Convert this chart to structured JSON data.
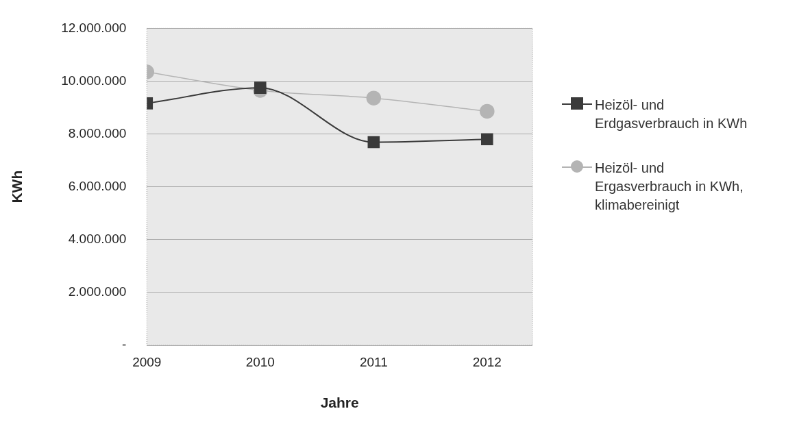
{
  "chart_data": {
    "type": "line",
    "xlabel": "Jahre",
    "ylabel": "KWh",
    "x": [
      2009,
      2010,
      2011,
      2012
    ],
    "xlim": [
      2009,
      2012.4
    ],
    "xticks": [
      2009,
      2010,
      2011,
      2012
    ],
    "ylim": [
      0,
      12000000
    ],
    "yticks": [
      {
        "value": 0,
        "label": "-"
      },
      {
        "value": 2000000,
        "label": "2.000.000"
      },
      {
        "value": 4000000,
        "label": "4.000.000"
      },
      {
        "value": 6000000,
        "label": "6.000.000"
      },
      {
        "value": 8000000,
        "label": "8.000.000"
      },
      {
        "value": 10000000,
        "label": "10.000.000"
      },
      {
        "value": 12000000,
        "label": "12.000.000"
      }
    ],
    "grid": "y",
    "legend": "right",
    "series": [
      {
        "name": "Heizöl- und Erdgasverbrauch in KWh",
        "color": "#3a3a3a",
        "marker": "square",
        "values": [
          9160000,
          9750000,
          7690000,
          7800000
        ]
      },
      {
        "name": "Heizöl- und Ergasverbrauch in KWh, klimabereinigt",
        "color": "#b4b4b4",
        "marker": "circle",
        "values": [
          10350000,
          9650000,
          9360000,
          8860000
        ]
      }
    ]
  }
}
